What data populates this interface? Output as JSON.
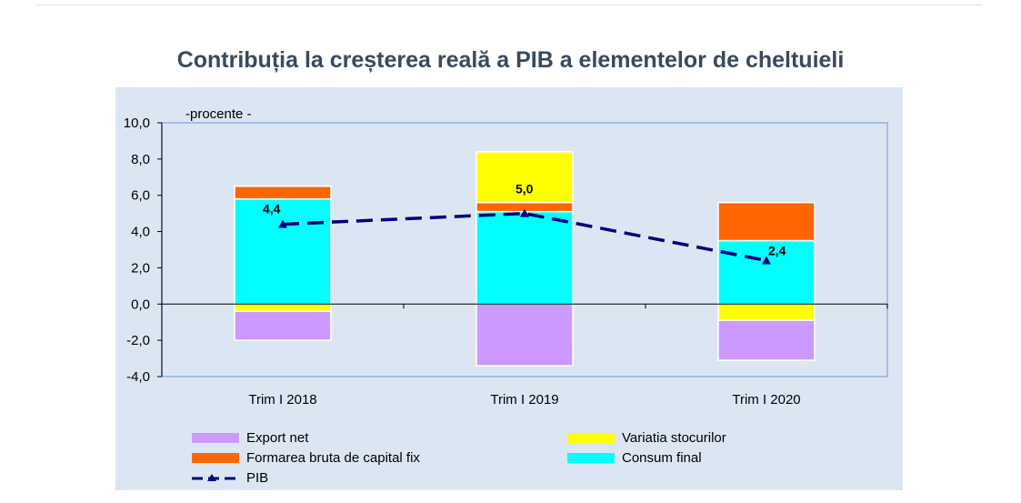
{
  "chart_data": {
    "type": "bar",
    "stacked": true,
    "title": "Contribuția la creșterea reală a PIB a elementelor de cheltuieli",
    "unit_label": "-procente -",
    "categories": [
      "Trim I 2018",
      "Trim I 2019",
      "Trim I 2020"
    ],
    "ylim": [
      -4.0,
      10.0
    ],
    "yticks": [
      "10,0",
      "8,0",
      "6,0",
      "4,0",
      "2,0",
      "0,0",
      "-2,0",
      "-4,0"
    ],
    "ytick_values": [
      10,
      8,
      6,
      4,
      2,
      0,
      -2,
      -4
    ],
    "series": [
      {
        "name": "Consum final",
        "color": "#00ffff",
        "values": [
          5.8,
          5.1,
          3.5
        ]
      },
      {
        "name": "Formarea bruta de capital fix",
        "color": "#ff6600",
        "values": [
          0.7,
          0.5,
          2.1
        ]
      },
      {
        "name": "Variatia stocurilor",
        "color": "#ffff00",
        "values": [
          -0.4,
          2.8,
          -0.9
        ]
      },
      {
        "name": "Export net",
        "color": "#cc99ff",
        "values": [
          -1.6,
          -3.4,
          -2.2
        ]
      }
    ],
    "line": {
      "name": "PIB",
      "color": "#000080",
      "values": [
        4.4,
        5.0,
        2.4
      ],
      "labels": [
        "4,4",
        "5,0",
        "2,4"
      ]
    },
    "grid": false,
    "legend_position": "bottom"
  },
  "legend": [
    {
      "label": "Export net",
      "color": "#cc99ff"
    },
    {
      "label": "Variatia stocurilor",
      "color": "#ffff00"
    },
    {
      "label": "Formarea bruta de capital fix",
      "color": "#ff6600"
    },
    {
      "label": "Consum final",
      "color": "#00ffff"
    },
    {
      "label": "PIB",
      "color": "#000080"
    }
  ]
}
